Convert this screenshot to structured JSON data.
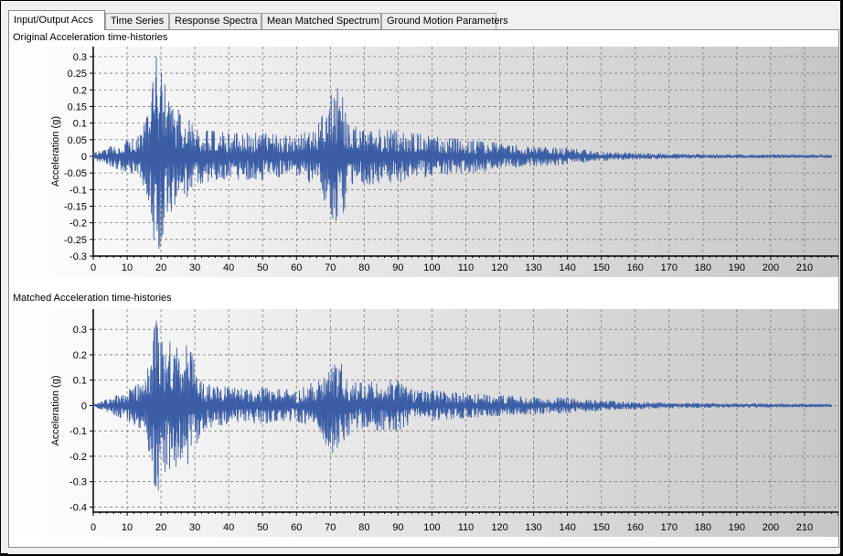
{
  "tabs": [
    {
      "label": "Input/Output Accs",
      "active": true
    },
    {
      "label": "Time Series",
      "active": false
    },
    {
      "label": "Response Spectra",
      "active": false
    },
    {
      "label": "Mean Matched Spectrum",
      "active": false
    },
    {
      "label": "Ground Motion Parameters",
      "active": false
    }
  ],
  "colors": {
    "series": "#3a5da6",
    "grid": "#7a7a7a",
    "background_start": "#ffffff",
    "background_end": "#c6c6c6"
  },
  "chart_data": [
    {
      "type": "line",
      "title": "Original Acceleration time-histories",
      "xlabel": "",
      "ylabel": "Acceleration (g)",
      "xlim": [
        0,
        220
      ],
      "ylim": [
        -0.3,
        0.33
      ],
      "xticks": [
        0,
        10,
        20,
        30,
        40,
        50,
        60,
        70,
        80,
        90,
        100,
        110,
        120,
        130,
        140,
        150,
        160,
        170,
        180,
        190,
        200,
        210
      ],
      "yticks": [
        0.3,
        0.25,
        0.2,
        0.15,
        0.1,
        0.05,
        0,
        -0.05,
        -0.1,
        -0.15,
        -0.2,
        -0.25,
        -0.3
      ],
      "ytick_labels": [
        "0.3",
        "0.25",
        "0.2",
        "0.15",
        "0.1",
        "0.05",
        "0",
        "-0.05",
        "-0.1",
        "-0.15",
        "-0.2",
        "-0.25",
        "-0.3"
      ],
      "grid": true,
      "series_envelope": {
        "description_points_x": [
          0,
          5,
          10,
          14,
          17,
          18.5,
          19,
          19.5,
          21,
          24,
          28,
          32,
          40,
          50,
          60,
          66,
          70,
          71,
          73,
          75,
          78,
          85,
          90,
          95,
          100,
          110,
          120,
          130,
          140,
          150,
          160,
          170,
          180,
          190,
          200,
          210,
          218
        ],
        "amplitude": [
          0.01,
          0.03,
          0.05,
          0.07,
          0.15,
          0.33,
          0.32,
          0.28,
          0.22,
          0.15,
          0.12,
          0.08,
          0.07,
          0.07,
          0.06,
          0.09,
          0.17,
          0.23,
          0.2,
          0.13,
          0.09,
          0.08,
          0.08,
          0.07,
          0.06,
          0.05,
          0.04,
          0.03,
          0.025,
          0.015,
          0.01,
          0.008,
          0.007,
          0.006,
          0.006,
          0.005,
          0.005
        ]
      }
    },
    {
      "type": "line",
      "title": "Matched Acceleration time-histories",
      "xlabel": "",
      "ylabel": "Acceleration (g)",
      "xlim": [
        0,
        220
      ],
      "ylim": [
        -0.42,
        0.38
      ],
      "xticks": [
        0,
        10,
        20,
        30,
        40,
        50,
        60,
        70,
        80,
        90,
        100,
        110,
        120,
        130,
        140,
        150,
        160,
        170,
        180,
        190,
        200,
        210
      ],
      "yticks": [
        0.3,
        0.2,
        0.1,
        0,
        -0.1,
        -0.2,
        -0.3,
        -0.4
      ],
      "ytick_labels": [
        "0.3",
        "0.2",
        "0.1",
        "0",
        "-0.1",
        "-0.2",
        "-0.3",
        "-0.4"
      ],
      "grid": true,
      "series_envelope": {
        "description_points_x": [
          0,
          5,
          10,
          14,
          17,
          18.5,
          19,
          20,
          22,
          25,
          28,
          32,
          40,
          50,
          60,
          66,
          70,
          72,
          75,
          78,
          85,
          90,
          95,
          100,
          110,
          120,
          130,
          140,
          150,
          160,
          170,
          180,
          190,
          200,
          210,
          218
        ],
        "amplitude": [
          0.01,
          0.03,
          0.06,
          0.09,
          0.2,
          0.36,
          0.4,
          0.32,
          0.26,
          0.24,
          0.24,
          0.1,
          0.07,
          0.07,
          0.06,
          0.1,
          0.18,
          0.2,
          0.12,
          0.09,
          0.1,
          0.1,
          0.06,
          0.06,
          0.05,
          0.04,
          0.035,
          0.03,
          0.02,
          0.015,
          0.012,
          0.01,
          0.008,
          0.008,
          0.007,
          0.006
        ]
      }
    }
  ]
}
